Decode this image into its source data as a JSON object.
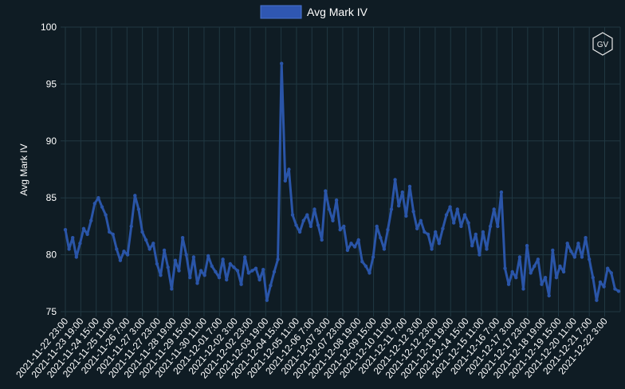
{
  "chart_data": {
    "type": "line",
    "ylabel": "Avg Mark IV",
    "ylim": [
      75,
      100
    ],
    "y_ticks": [
      75,
      80,
      85,
      90,
      95,
      100
    ],
    "grid": true,
    "legend": {
      "position": "top-center",
      "label": "Avg Mark IV"
    },
    "colors": {
      "background": "#0f1c24",
      "grid": "#203842",
      "line": "#2a55a8",
      "legend_swatch": "#2f57b2"
    },
    "logo_text": "GV",
    "x_labels": [
      "2021-11-22 23:00",
      "2021-11-23 19:00",
      "2021-11-24 15:00",
      "2021-11-25 11:00",
      "2021-11-26 7:00",
      "2021-11-27 3:00",
      "2021-11-27 23:00",
      "2021-11-28 19:00",
      "2021-11-29 15:00",
      "2021-11-30 11:00",
      "2021-12-01 7:00",
      "2021-12-02 3:00",
      "2021-12-02 23:00",
      "2021-12-03 19:00",
      "2021-12-04 15:00",
      "2021-12-05 11:00",
      "2021-12-06 7:00",
      "2021-12-07 3:00",
      "2021-12-07 23:00",
      "2021-12-08 19:00",
      "2021-12-09 15:00",
      "2021-12-10 11:00",
      "2021-12-11 7:00",
      "2021-12-12 3:00",
      "2021-12-12 23:00",
      "2021-12-13 19:00",
      "2021-12-14 15:00",
      "2021-12-15 11:00",
      "2021-12-16 7:00",
      "2021-12-17 3:00",
      "2021-12-17 23:00",
      "2021-12-18 19:00",
      "2021-12-19 15:00",
      "2021-12-20 11:00",
      "2021-12-21 7:00",
      "2021-12-22 3:00"
    ],
    "series": [
      {
        "name": "Avg Mark IV",
        "values": [
          82.2,
          80.5,
          81.5,
          79.8,
          81.0,
          82.3,
          81.8,
          83.0,
          84.5,
          85.0,
          84.2,
          83.5,
          82.0,
          81.8,
          80.5,
          79.5,
          80.3,
          80.0,
          82.5,
          85.2,
          84.0,
          82.0,
          81.3,
          80.5,
          81.0,
          79.2,
          78.2,
          80.4,
          78.9,
          77.0,
          79.5,
          78.6,
          81.5,
          80.0,
          78.0,
          79.8,
          77.5,
          78.6,
          78.2,
          79.9,
          79.0,
          78.5,
          78.0,
          79.6,
          77.8,
          79.2,
          78.9,
          78.6,
          77.4,
          79.8,
          78.4,
          78.6,
          78.8,
          77.8,
          78.7,
          76.0,
          77.3,
          78.5,
          79.6,
          96.8,
          86.5,
          87.5,
          83.5,
          82.6,
          82.0,
          83.0,
          83.5,
          82.5,
          84.0,
          82.6,
          81.3,
          85.6,
          84.0,
          83.0,
          84.8,
          82.2,
          82.5,
          80.4,
          81.0,
          80.7,
          81.3,
          79.4,
          79.0,
          78.4,
          79.8,
          82.5,
          81.5,
          80.5,
          82.2,
          84.0,
          86.6,
          84.3,
          85.5,
          83.4,
          86.0,
          83.8,
          82.3,
          83.0,
          82.0,
          81.8,
          80.5,
          82.0,
          81.0,
          82.3,
          83.5,
          84.2,
          82.8,
          84.0,
          82.5,
          83.5,
          82.8,
          80.8,
          81.8,
          80.0,
          82.0,
          80.5,
          82.5,
          84.0,
          82.5,
          85.5,
          78.8,
          77.4,
          78.5,
          78.0,
          79.8,
          77.0,
          80.8,
          78.4,
          79.0,
          79.6,
          77.4,
          78.0,
          76.4,
          80.4,
          78.0,
          79.0,
          78.5,
          81.0,
          80.3,
          79.8,
          81.0,
          79.8,
          81.5,
          79.6,
          78.0,
          76.0,
          77.6,
          77.2,
          78.8,
          78.4,
          77.0,
          76.8
        ]
      }
    ]
  }
}
